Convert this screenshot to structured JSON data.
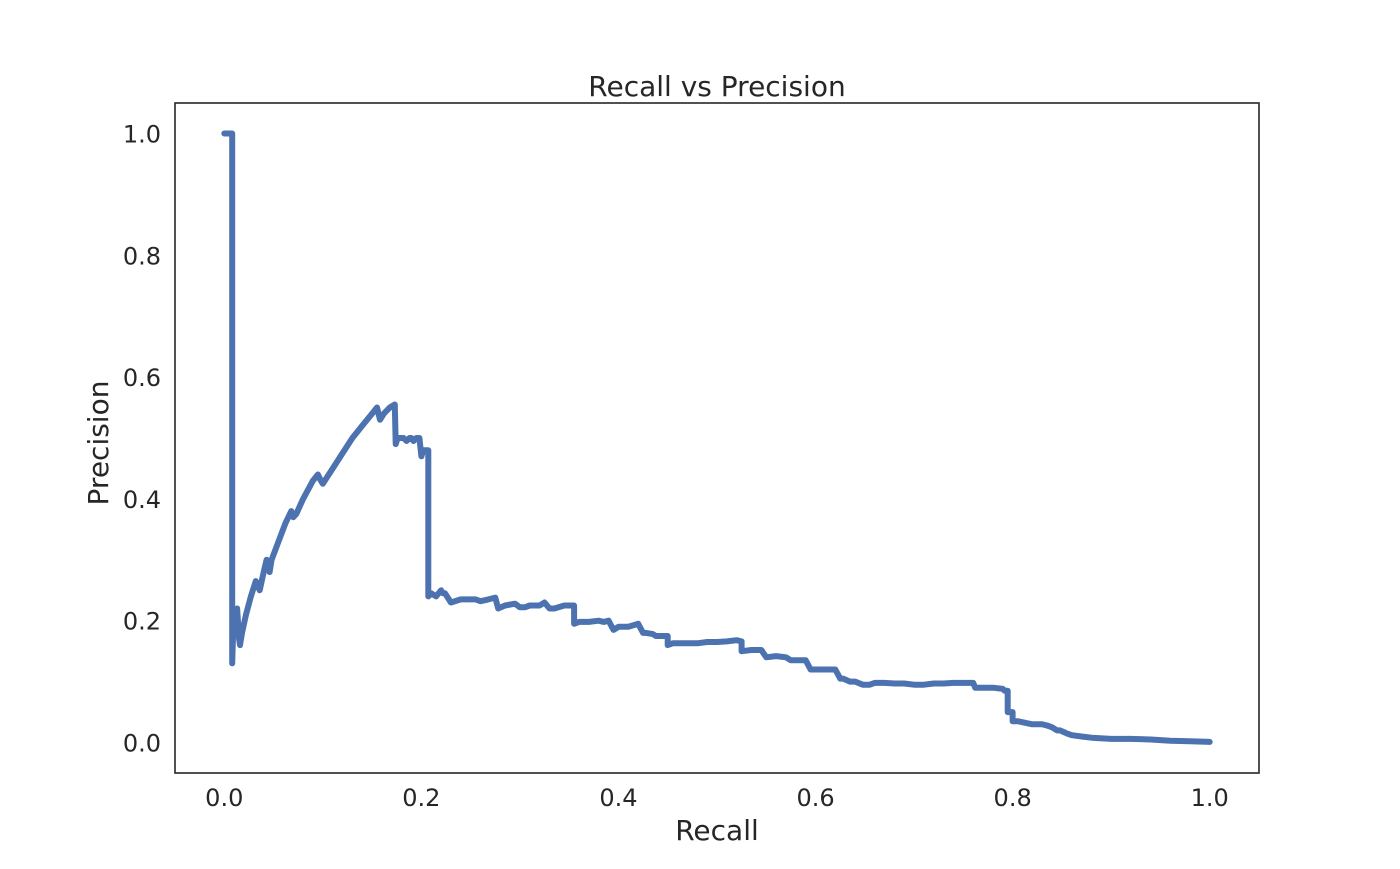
{
  "chart_data": {
    "type": "line",
    "title": "Recall vs Precision",
    "xlabel": "Recall",
    "ylabel": "Precision",
    "xlim": [
      -0.05,
      1.05
    ],
    "ylim": [
      -0.05,
      1.05
    ],
    "xticks": [
      0.0,
      0.2,
      0.4,
      0.6,
      0.8,
      1.0
    ],
    "xtick_labels": [
      "0.0",
      "0.2",
      "0.4",
      "0.6",
      "0.8",
      "1.0"
    ],
    "yticks": [
      0.0,
      0.2,
      0.4,
      0.6,
      0.8,
      1.0
    ],
    "ytick_labels": [
      "0.0",
      "0.2",
      "0.4",
      "0.6",
      "0.8",
      "1.0"
    ],
    "grid": false,
    "legend": "none",
    "line_color": "#4c72b0",
    "series": [
      {
        "x": [
          0.0,
          0.008,
          0.008,
          0.009,
          0.011,
          0.013,
          0.015,
          0.016,
          0.018,
          0.022,
          0.027,
          0.032,
          0.036,
          0.038,
          0.04,
          0.043,
          0.046,
          0.048,
          0.055,
          0.062,
          0.068,
          0.07,
          0.073,
          0.08,
          0.09,
          0.095,
          0.098,
          0.1,
          0.11,
          0.12,
          0.13,
          0.14,
          0.15,
          0.155,
          0.158,
          0.162,
          0.168,
          0.173,
          0.174,
          0.176,
          0.178,
          0.18,
          0.182,
          0.185,
          0.188,
          0.19,
          0.192,
          0.195,
          0.198,
          0.2,
          0.202,
          0.205,
          0.206,
          0.207,
          0.207,
          0.21,
          0.215,
          0.22,
          0.222,
          0.224,
          0.23,
          0.23,
          0.24,
          0.245,
          0.25,
          0.255,
          0.26,
          0.268,
          0.275,
          0.278,
          0.285,
          0.295,
          0.3,
          0.305,
          0.31,
          0.32,
          0.325,
          0.33,
          0.335,
          0.345,
          0.35,
          0.355,
          0.355,
          0.36,
          0.37,
          0.38,
          0.385,
          0.39,
          0.395,
          0.4,
          0.41,
          0.42,
          0.425,
          0.428,
          0.435,
          0.438,
          0.445,
          0.45,
          0.45,
          0.455,
          0.47,
          0.48,
          0.49,
          0.5,
          0.51,
          0.52,
          0.525,
          0.525,
          0.535,
          0.545,
          0.55,
          0.56,
          0.57,
          0.575,
          0.59,
          0.595,
          0.605,
          0.62,
          0.625,
          0.628,
          0.635,
          0.64,
          0.648,
          0.655,
          0.66,
          0.67,
          0.68,
          0.69,
          0.7,
          0.71,
          0.72,
          0.73,
          0.74,
          0.75,
          0.76,
          0.762,
          0.77,
          0.78,
          0.79,
          0.792,
          0.795,
          0.795,
          0.8,
          0.8,
          0.805,
          0.82,
          0.83,
          0.835,
          0.84,
          0.845,
          0.848,
          0.855,
          0.86,
          0.87,
          0.88,
          0.9,
          0.92,
          0.94,
          0.95,
          0.96,
          0.98,
          1.0
        ],
        "y": [
          1.0,
          1.0,
          0.13,
          0.18,
          0.2,
          0.22,
          0.17,
          0.16,
          0.18,
          0.21,
          0.24,
          0.265,
          0.25,
          0.265,
          0.28,
          0.3,
          0.28,
          0.3,
          0.33,
          0.36,
          0.38,
          0.37,
          0.375,
          0.4,
          0.43,
          0.44,
          0.43,
          0.425,
          0.45,
          0.475,
          0.5,
          0.52,
          0.54,
          0.55,
          0.53,
          0.54,
          0.55,
          0.555,
          0.49,
          0.5,
          0.5,
          0.5,
          0.5,
          0.495,
          0.5,
          0.5,
          0.495,
          0.5,
          0.5,
          0.47,
          0.48,
          0.48,
          0.48,
          0.48,
          0.24,
          0.245,
          0.24,
          0.25,
          0.245,
          0.245,
          0.23,
          0.23,
          0.235,
          0.235,
          0.235,
          0.235,
          0.232,
          0.235,
          0.238,
          0.22,
          0.225,
          0.228,
          0.222,
          0.222,
          0.225,
          0.225,
          0.23,
          0.22,
          0.22,
          0.225,
          0.225,
          0.225,
          0.195,
          0.198,
          0.198,
          0.2,
          0.198,
          0.2,
          0.185,
          0.19,
          0.19,
          0.195,
          0.18,
          0.18,
          0.178,
          0.175,
          0.175,
          0.175,
          0.16,
          0.163,
          0.163,
          0.163,
          0.165,
          0.165,
          0.166,
          0.168,
          0.166,
          0.15,
          0.152,
          0.152,
          0.14,
          0.142,
          0.14,
          0.135,
          0.135,
          0.12,
          0.12,
          0.12,
          0.105,
          0.105,
          0.1,
          0.1,
          0.095,
          0.095,
          0.098,
          0.098,
          0.097,
          0.097,
          0.095,
          0.095,
          0.097,
          0.097,
          0.098,
          0.098,
          0.098,
          0.09,
          0.09,
          0.09,
          0.088,
          0.085,
          0.085,
          0.05,
          0.05,
          0.035,
          0.035,
          0.03,
          0.03,
          0.028,
          0.025,
          0.02,
          0.02,
          0.015,
          0.012,
          0.01,
          0.008,
          0.006,
          0.006,
          0.005,
          0.004,
          0.003,
          0.002,
          0.001
        ]
      }
    ]
  }
}
